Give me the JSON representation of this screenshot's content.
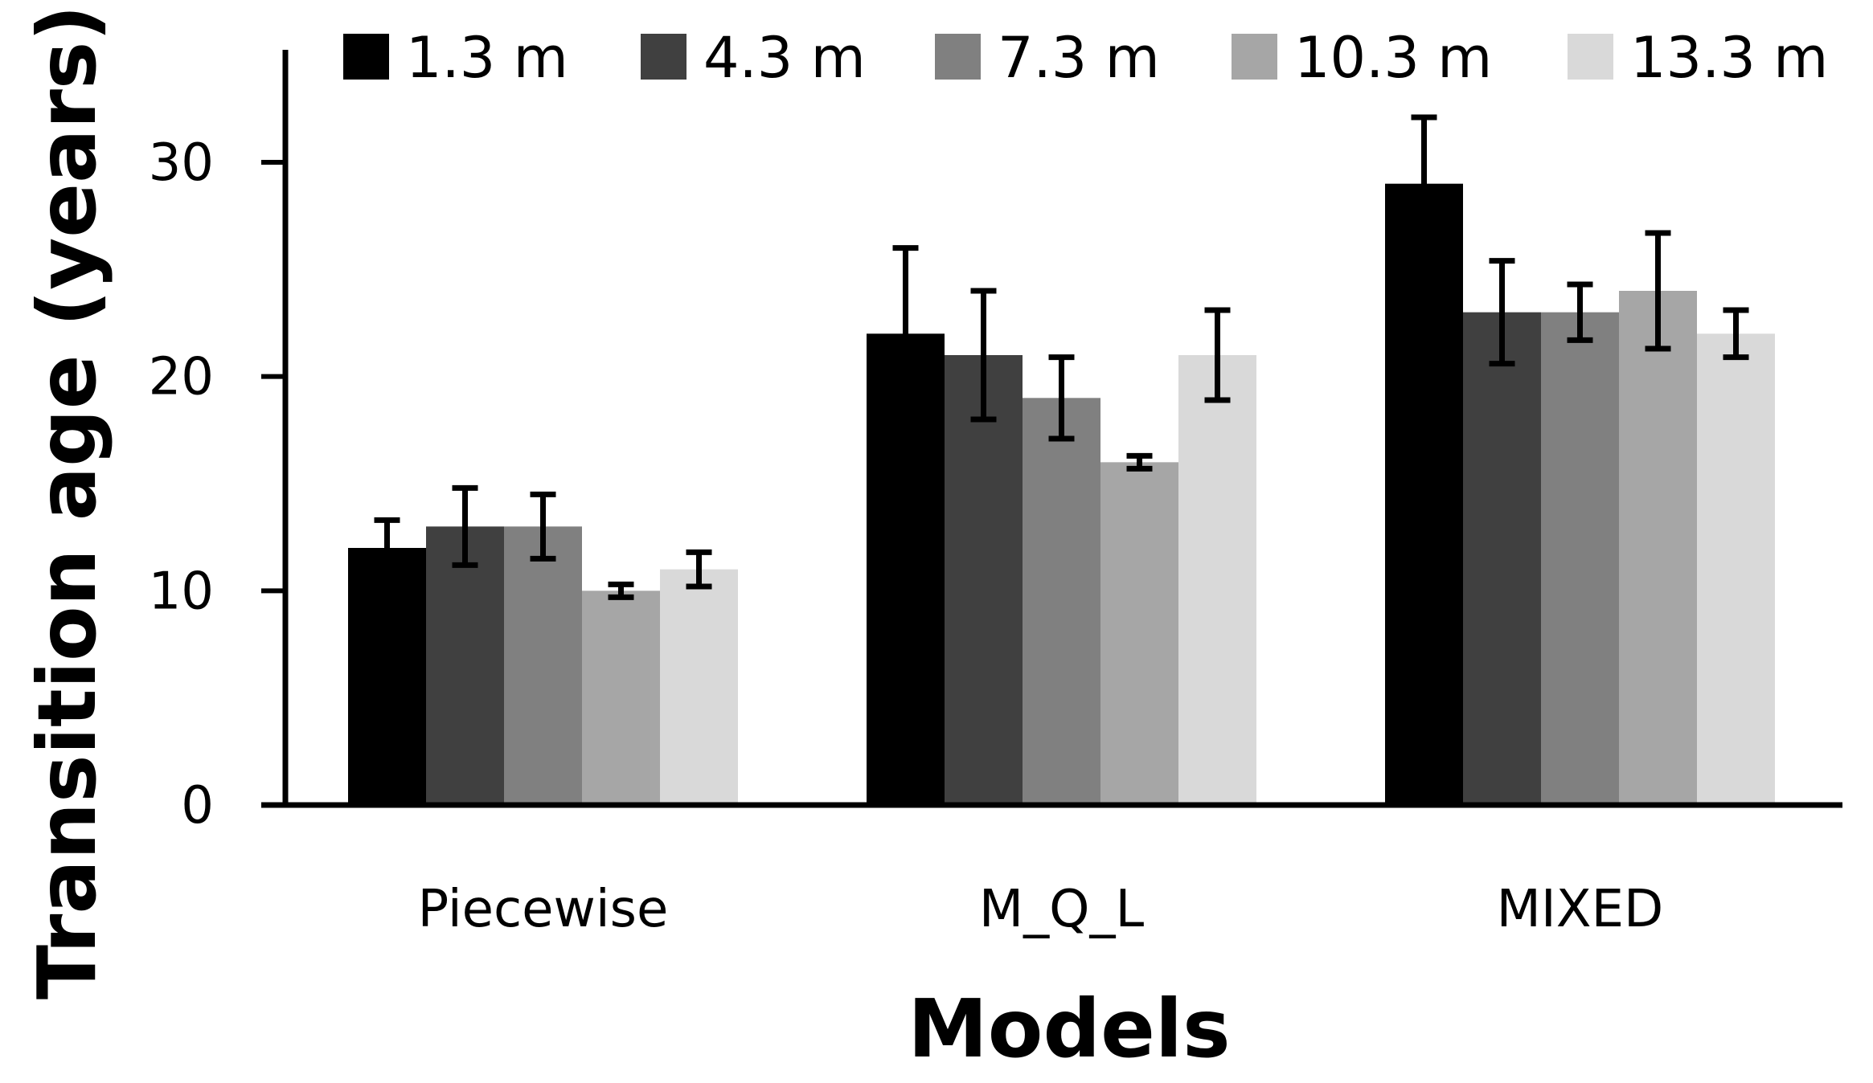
{
  "chart_data": {
    "type": "bar",
    "xlabel": "Models",
    "ylabel": "Transition age (years)",
    "ylim": [
      0,
      35
    ],
    "yticks": [
      "0",
      "10",
      "20",
      "30"
    ],
    "grid": false,
    "legend_position": "top",
    "categories": [
      "Piecewise",
      "M_Q_L",
      "MIXED"
    ],
    "series": [
      {
        "name": "1.3 m",
        "color": "#000000",
        "values": [
          12,
          22,
          29
        ],
        "errors": [
          1.3,
          4.0,
          3.1
        ]
      },
      {
        "name": "4.3 m",
        "color": "#404040",
        "values": [
          13,
          21,
          23
        ],
        "errors": [
          1.8,
          3.0,
          2.4
        ]
      },
      {
        "name": "7.3 m",
        "color": "#808080",
        "values": [
          13,
          19,
          23
        ],
        "errors": [
          1.5,
          1.9,
          1.3
        ]
      },
      {
        "name": "10.3 m",
        "color": "#a6a6a6",
        "values": [
          10,
          16,
          24
        ],
        "errors": [
          0.3,
          0.3,
          2.7
        ]
      },
      {
        "name": "13.3 m",
        "color": "#d9d9d9",
        "values": [
          11,
          21,
          22
        ],
        "errors": [
          0.8,
          2.1,
          1.1
        ]
      }
    ]
  }
}
